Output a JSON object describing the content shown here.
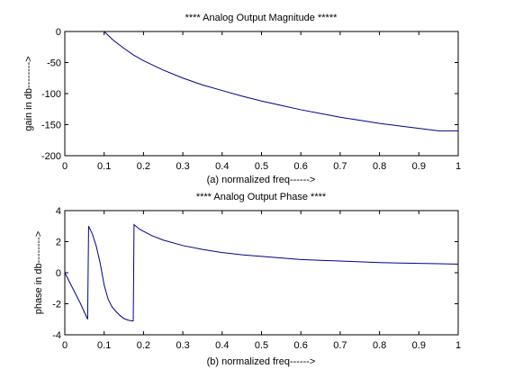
{
  "figure": {
    "background": "#ffffff",
    "line_color": "#00008b"
  },
  "chart_data": [
    {
      "type": "line",
      "title": "**** Analog Output Magnitude *****",
      "xlabel": "(a) normalized freq------>",
      "ylabel": "gain in db-------->",
      "xlim": [
        0,
        1
      ],
      "ylim": [
        -200,
        0
      ],
      "xticks": [
        0,
        0.1,
        0.2,
        0.3,
        0.4,
        0.5,
        0.6,
        0.7,
        0.8,
        0.9,
        1
      ],
      "xtick_labels": [
        "0",
        "0.1",
        "0.2",
        "0.3",
        "0.4",
        "0.5",
        "0.6",
        "0.7",
        "0.8",
        "0.9",
        "1"
      ],
      "yticks": [
        -200,
        -150,
        -100,
        -50,
        0
      ],
      "ytick_labels": [
        "-200",
        "-150",
        "-100",
        "-50",
        "0"
      ],
      "grid": false,
      "series": [
        {
          "color": "#00008b",
          "x": [
            0.1,
            0.125,
            0.15,
            0.175,
            0.2,
            0.25,
            0.3,
            0.35,
            0.4,
            0.45,
            0.5,
            0.55,
            0.6,
            0.65,
            0.7,
            0.75,
            0.8,
            0.85,
            0.9,
            0.95,
            1.0
          ],
          "y": [
            0,
            -15,
            -27,
            -38,
            -47,
            -62,
            -75,
            -86,
            -95,
            -104,
            -112,
            -119,
            -126,
            -132,
            -138,
            -143,
            -148,
            -152,
            -156,
            -160,
            -160
          ]
        }
      ]
    },
    {
      "type": "line",
      "title": "**** Analog Output Phase ****",
      "xlabel": "(b) normalized freq------>",
      "ylabel": "phase in db-------->",
      "xlim": [
        0,
        1
      ],
      "ylim": [
        -4,
        4
      ],
      "xticks": [
        0,
        0.1,
        0.2,
        0.3,
        0.4,
        0.5,
        0.6,
        0.7,
        0.8,
        0.9,
        1
      ],
      "xtick_labels": [
        "0",
        "0.1",
        "0.2",
        "0.3",
        "0.4",
        "0.5",
        "0.6",
        "0.7",
        "0.8",
        "0.9",
        "1"
      ],
      "yticks": [
        -4,
        -2,
        0,
        2,
        4
      ],
      "ytick_labels": [
        "-4",
        "-2",
        "0",
        "2",
        "4"
      ],
      "grid": false,
      "series": [
        {
          "color": "#00008b",
          "x": [
            0,
            0.02,
            0.04,
            0.058,
            0.0605,
            0.07,
            0.08,
            0.09,
            0.1,
            0.11,
            0.12,
            0.13,
            0.14,
            0.15,
            0.16,
            0.17,
            0.174,
            0.176,
            0.19,
            0.22,
            0.25,
            0.3,
            0.35,
            0.4,
            0.45,
            0.5,
            0.55,
            0.6,
            0.65,
            0.7,
            0.75,
            0.8,
            0.85,
            0.9,
            0.95,
            1.0
          ],
          "y": [
            0,
            -1.0,
            -2.0,
            -3.0,
            3.0,
            2.5,
            1.7,
            0.6,
            -0.8,
            -1.7,
            -2.2,
            -2.5,
            -2.75,
            -2.95,
            -3.05,
            -3.1,
            -3.1,
            3.1,
            2.8,
            2.4,
            2.1,
            1.75,
            1.5,
            1.3,
            1.15,
            1.05,
            0.95,
            0.85,
            0.8,
            0.75,
            0.7,
            0.65,
            0.62,
            0.6,
            0.58,
            0.55
          ]
        }
      ]
    }
  ]
}
